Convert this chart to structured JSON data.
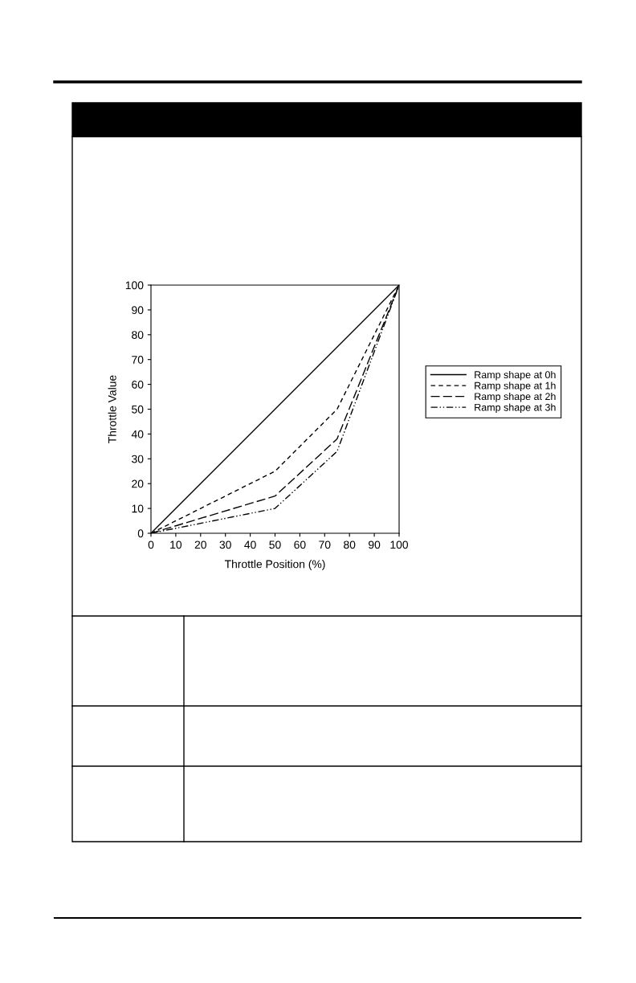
{
  "chart_data": {
    "type": "line",
    "xlabel": "Throttle Position (%)",
    "ylabel": "Throttle Value",
    "xlim": [
      0,
      100
    ],
    "ylim": [
      0,
      100
    ],
    "xticks": [
      0,
      10,
      20,
      30,
      40,
      50,
      60,
      70,
      80,
      90,
      100
    ],
    "yticks": [
      0,
      10,
      20,
      30,
      40,
      50,
      60,
      70,
      80,
      90,
      100
    ],
    "grid": false,
    "legend": "right",
    "marker": "none",
    "series": [
      {
        "name": "Ramp shape at 0h",
        "color": "#000000",
        "line_style": "solid",
        "x": [
          0,
          100
        ],
        "values": [
          0,
          100
        ]
      },
      {
        "name": "Ramp shape at 1h",
        "color": "#000000",
        "line_style": "dashed",
        "x": [
          0,
          50,
          75,
          100
        ],
        "values": [
          0,
          25,
          50,
          100
        ]
      },
      {
        "name": "Ramp shape at 2h",
        "color": "#000000",
        "line_style": "longdash",
        "x": [
          0,
          50,
          75,
          100
        ],
        "values": [
          0,
          15,
          38,
          100
        ]
      },
      {
        "name": "Ramp shape at 3h",
        "color": "#000000",
        "line_style": "dashdotdot",
        "x": [
          0,
          50,
          75,
          100
        ],
        "values": [
          0,
          10,
          33,
          100
        ]
      }
    ]
  }
}
